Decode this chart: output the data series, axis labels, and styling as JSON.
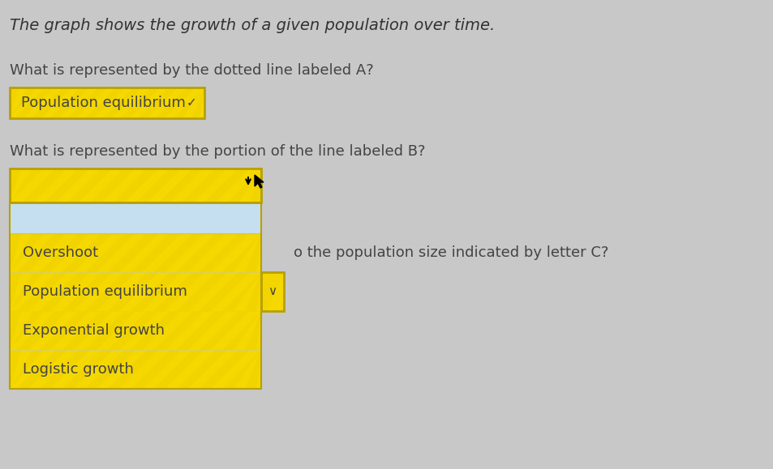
{
  "background_color": "#c8c8c8",
  "title_text": "The graph shows the growth of a given population over time.",
  "q1_text": "What is represented by the dotted line labeled A?",
  "q1_answer": "Population equilibrium",
  "q2_text": "What is represented by the portion of the line labeled B?",
  "q2_answer_partial": "o the population size indicated by letter C?",
  "dropdown_items": [
    "Overshoot",
    "Population equilibrium",
    "Exponential growth",
    "Logistic growth"
  ],
  "dropdown_highlight_color": "#c5dff0",
  "yellow_color": "#f5d800",
  "yellow_light": "#f7e44a",
  "answer_box_border": "#b8a000",
  "text_color": "#444444",
  "title_color": "#333333",
  "green_text": "#2d7a2d",
  "font_size_title": 14,
  "font_size_body": 13,
  "font_size_items": 13
}
